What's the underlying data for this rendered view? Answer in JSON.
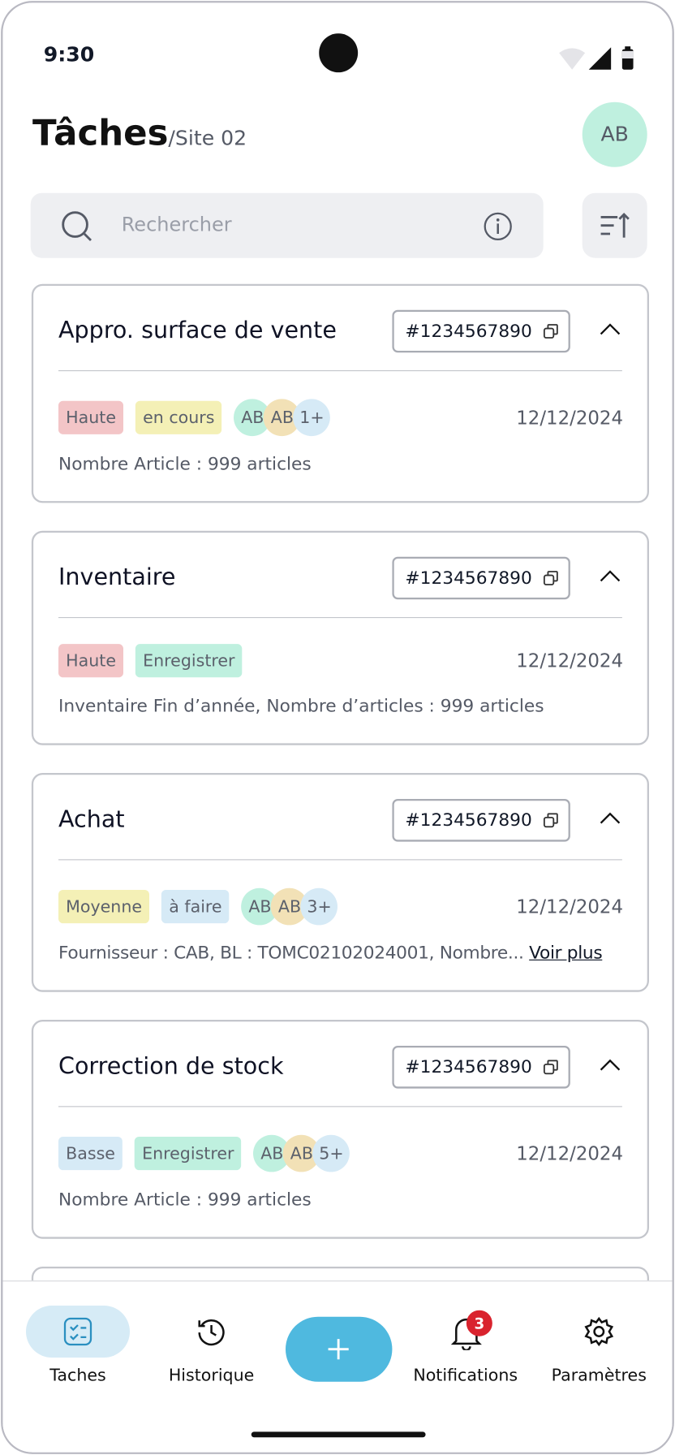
{
  "status_bar": {
    "time": "9:30"
  },
  "header": {
    "title": "Tâches",
    "subtitle": "/Site 02",
    "avatar": "AB"
  },
  "search": {
    "placeholder": "Rechercher"
  },
  "tasks": [
    {
      "title": "Appro. surface de vente",
      "id": "#1234567890",
      "priority": "Haute",
      "status": "en cours",
      "assignees": [
        "AB",
        "AB"
      ],
      "more": "1+",
      "date": "12/12/2024",
      "description": "Nombre Article : 999 articles"
    },
    {
      "title": "Inventaire",
      "id": "#1234567890",
      "priority": "Haute",
      "status": "Enregistrer",
      "date": "12/12/2024",
      "description": "Inventaire Fin d’année, Nombre d’articles : 999 articles"
    },
    {
      "title": "Achat",
      "id": "#1234567890",
      "priority": "Moyenne",
      "status": "à faire",
      "assignees": [
        "AB",
        "AB"
      ],
      "more": "3+",
      "date": "12/12/2024",
      "description": "Fournisseur : CAB, BL :  TOMC02102024001, Nombre...",
      "link": "Voir plus"
    },
    {
      "title": "Correction de stock",
      "id": "#1234567890",
      "priority": "Basse",
      "status": "Enregistrer",
      "assignees": [
        "AB",
        "AB"
      ],
      "more": "5+",
      "date": "12/12/2024",
      "description": "Nombre Article : 999 articles"
    }
  ],
  "nav": {
    "items": [
      "Taches",
      "Historique",
      "Notifications",
      "Paramètres"
    ],
    "badge": "3"
  }
}
